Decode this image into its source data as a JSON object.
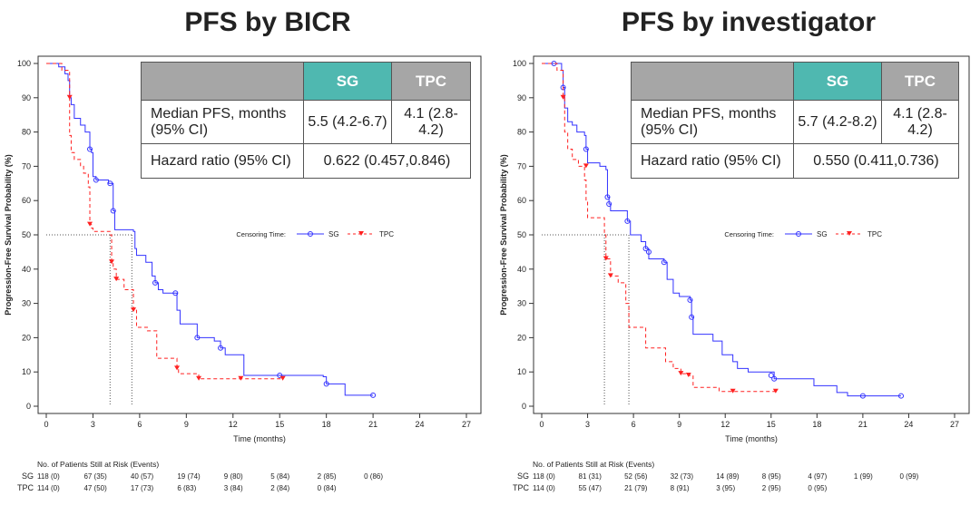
{
  "chart_data": [
    {
      "type": "line",
      "title": "PFS by BICR",
      "xlabel": "Time (months)",
      "ylabel": "Progression-Free Survival Probability (%)",
      "xlim": [
        0,
        27
      ],
      "ylim": [
        0,
        100
      ],
      "xticks": [
        0,
        3,
        6,
        9,
        12,
        15,
        18,
        21,
        24,
        27
      ],
      "yticks": [
        0,
        10,
        20,
        30,
        40,
        50,
        60,
        70,
        80,
        90,
        100
      ],
      "legend": {
        "title": "Censoring Time:",
        "position": "right"
      },
      "median_refs": {
        "y": 50,
        "x": [
          4.1,
          5.5
        ]
      },
      "series": [
        {
          "name": "SG",
          "color": "#3333ff",
          "style": "solid",
          "x": [
            0,
            0.8,
            1.2,
            1.4,
            1.5,
            1.6,
            1.8,
            2.2,
            2.5,
            2.8,
            2.9,
            3.0,
            3.2,
            4.0,
            4.3,
            4.4,
            5.6,
            5.7,
            5.8,
            6.4,
            6.8,
            7.0,
            7.2,
            7.5,
            8.3,
            8.4,
            8.6,
            9.6,
            9.7,
            10.8,
            11.2,
            11.5,
            12.7,
            17.8,
            18.0,
            19.2,
            21.0
          ],
          "y": [
            100,
            99,
            97,
            95,
            90,
            88,
            84,
            82,
            80,
            75,
            74,
            67,
            66,
            65,
            57,
            51.5,
            51,
            46,
            44,
            42,
            38,
            36,
            34,
            33,
            33,
            28,
            24,
            24,
            20,
            19,
            17,
            15,
            9,
            8.6,
            6.5,
            3.2,
            3.2
          ],
          "censored": [
            [
              2.8,
              75
            ],
            [
              3.2,
              66
            ],
            [
              4.1,
              65
            ],
            [
              4.3,
              57
            ],
            [
              7.0,
              36
            ],
            [
              8.3,
              33
            ],
            [
              9.7,
              20
            ],
            [
              11.2,
              17
            ],
            [
              15.0,
              9
            ],
            [
              18.0,
              6.5
            ],
            [
              21.0,
              3.2
            ]
          ]
        },
        {
          "name": "TPC",
          "color": "#ff2020",
          "style": "dashed",
          "x": [
            0,
            1.0,
            1.5,
            1.6,
            1.8,
            2.2,
            2.4,
            2.7,
            2.8,
            2.9,
            3.0,
            4.1,
            4.2,
            4.3,
            4.5,
            5.0,
            5.6,
            5.8,
            6.5,
            7.1,
            8.4,
            8.5,
            9.8,
            15.2
          ],
          "y": [
            100,
            98,
            79,
            74,
            72,
            70,
            68,
            64,
            53,
            52,
            51,
            50,
            42,
            40,
            37,
            34,
            28,
            23,
            22,
            14,
            11,
            9.5,
            8,
            8
          ],
          "censored": [
            [
              1.5,
              90
            ],
            [
              2.8,
              53
            ],
            [
              4.2,
              42
            ],
            [
              4.5,
              37
            ],
            [
              5.6,
              28
            ],
            [
              8.4,
              11
            ],
            [
              9.8,
              8
            ],
            [
              12.5,
              8
            ],
            [
              15.2,
              8
            ]
          ]
        }
      ],
      "table": {
        "headers": [
          "",
          "SG",
          "TPC"
        ],
        "rows": [
          [
            "Median PFS, months (95% CI)",
            "5.5 (4.2-6.7)",
            "4.1 (2.8-4.2)"
          ],
          [
            "Hazard ratio (95% CI)",
            "0.622 (0.457,0.846)"
          ]
        ]
      },
      "risk": {
        "title": "No. of Patients Still at Risk (Events)",
        "SG": [
          "118 (0)",
          "67 (35)",
          "40 (57)",
          "19 (74)",
          "9 (80)",
          "5 (84)",
          "2 (85)",
          "0 (86)"
        ],
        "TPC": [
          "114 (0)",
          "47 (50)",
          "17 (73)",
          "6 (83)",
          "3 (84)",
          "2 (84)",
          "0 (84)"
        ]
      }
    },
    {
      "type": "line",
      "title": "PFS by investigator",
      "xlabel": "Time (months)",
      "ylabel": "Progression-Free Survival Probability (%)",
      "xlim": [
        0,
        27
      ],
      "ylim": [
        0,
        100
      ],
      "xticks": [
        0,
        3,
        6,
        9,
        12,
        15,
        18,
        21,
        24,
        27
      ],
      "yticks": [
        0,
        10,
        20,
        30,
        40,
        50,
        60,
        70,
        80,
        90,
        100
      ],
      "legend": {
        "title": "Censoring Time:",
        "position": "right"
      },
      "median_refs": {
        "y": 50,
        "x": [
          4.1,
          5.7
        ]
      },
      "series": [
        {
          "name": "SG",
          "color": "#3333ff",
          "style": "solid",
          "x": [
            0,
            1.0,
            1.3,
            1.4,
            1.5,
            1.7,
            2.0,
            2.3,
            2.8,
            2.9,
            3.0,
            3.8,
            4.2,
            4.3,
            4.4,
            4.5,
            5.6,
            5.8,
            6.5,
            6.8,
            7.0,
            8.0,
            8.2,
            8.6,
            9.0,
            9.7,
            9.8,
            9.9,
            11.2,
            11.8,
            12.5,
            12.8,
            13.5,
            15.2,
            17.8,
            19.3,
            20.0,
            23.5
          ],
          "y": [
            100,
            100,
            98,
            93,
            87,
            83,
            82,
            80,
            79,
            75,
            71,
            70,
            69,
            61,
            59,
            57,
            54,
            50,
            48,
            46,
            43,
            42,
            37,
            33,
            32,
            31,
            26,
            21,
            19,
            15,
            13,
            11,
            10,
            8,
            6,
            4,
            3,
            3
          ],
          "censored": [
            [
              0.8,
              100
            ],
            [
              1.4,
              93
            ],
            [
              2.9,
              75
            ],
            [
              4.3,
              61
            ],
            [
              4.4,
              59
            ],
            [
              5.6,
              54
            ],
            [
              6.8,
              46
            ],
            [
              7.0,
              45
            ],
            [
              8.0,
              42
            ],
            [
              9.7,
              31
            ],
            [
              9.8,
              26
            ],
            [
              15.0,
              9
            ],
            [
              15.2,
              8
            ],
            [
              21.0,
              3
            ],
            [
              23.5,
              3
            ]
          ]
        },
        {
          "name": "TPC",
          "color": "#ff2020",
          "style": "dashed",
          "x": [
            0,
            1.0,
            1.4,
            1.5,
            1.7,
            2.0,
            2.4,
            2.8,
            2.9,
            3.0,
            4.1,
            4.2,
            4.5,
            5.0,
            5.5,
            5.7,
            6.8,
            8.1,
            8.6,
            9.1,
            9.6,
            9.9,
            11.6,
            15.3
          ],
          "y": [
            100,
            98,
            90,
            80,
            75,
            72,
            70,
            66,
            60,
            55,
            50,
            43,
            38,
            36,
            30,
            23,
            17,
            13,
            11,
            9.5,
            9,
            5.5,
            4.3,
            4.3
          ],
          "censored": [
            [
              1.4,
              90
            ],
            [
              2.9,
              70
            ],
            [
              4.2,
              43
            ],
            [
              4.5,
              38
            ],
            [
              9.1,
              9.5
            ],
            [
              9.6,
              9
            ],
            [
              12.5,
              4.3
            ],
            [
              15.3,
              4.3
            ]
          ]
        }
      ],
      "table": {
        "headers": [
          "",
          "SG",
          "TPC"
        ],
        "rows": [
          [
            "Median PFS, months (95% CI)",
            "5.7 (4.2-8.2)",
            "4.1 (2.8-4.2)"
          ],
          [
            "Hazard ratio (95% CI)",
            "0.550 (0.411,0.736)"
          ]
        ]
      },
      "risk": {
        "title": "No. of Patients Still at Risk (Events)",
        "SG": [
          "118 (0)",
          "81 (31)",
          "52 (56)",
          "32 (73)",
          "14 (89)",
          "8 (95)",
          "4 (97)",
          "1 (99)",
          "0 (99)"
        ],
        "TPC": [
          "114 (0)",
          "55 (47)",
          "21 (79)",
          "8 (91)",
          "3 (95)",
          "2 (95)",
          "0 (95)"
        ]
      }
    }
  ]
}
